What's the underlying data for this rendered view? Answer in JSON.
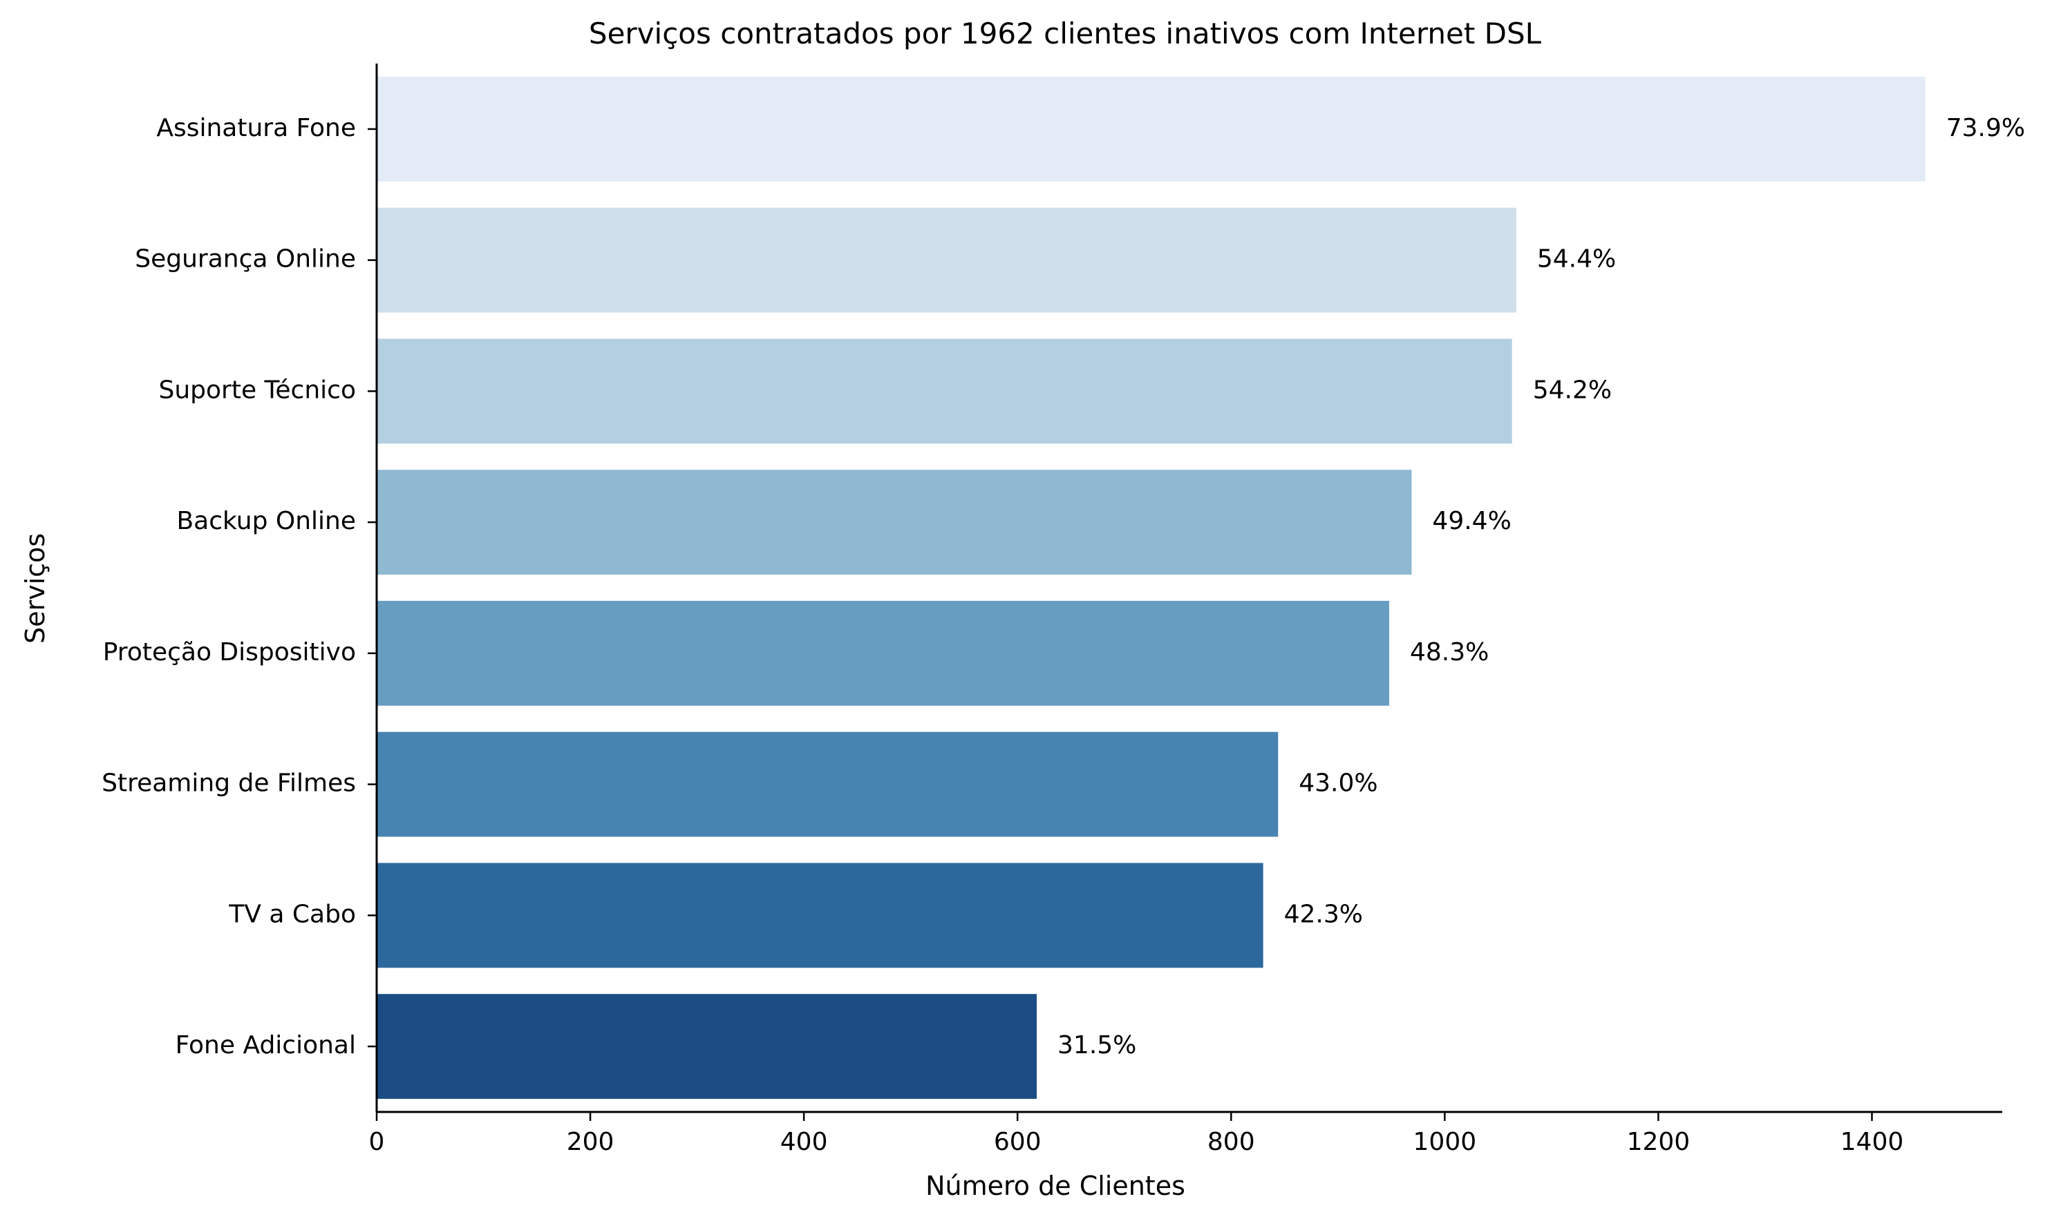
{
  "chart_data": {
    "type": "bar",
    "orientation": "horizontal",
    "title": "Serviços contratados por 1962 clientes inativos com Internet DSL",
    "xlabel": "Número de Clientes",
    "ylabel": "Serviços",
    "xlim": [
      0,
      1522
    ],
    "xticks": [
      0,
      200,
      400,
      600,
      800,
      1000,
      1200,
      1400
    ],
    "categories": [
      "Assinatura Fone",
      "Segurança Online",
      "Suporte Técnico",
      "Backup Online",
      "Proteção Dispositivo",
      "Streaming de Filmes",
      "TV a Cabo",
      "Fone Adicional"
    ],
    "values": [
      1450,
      1067,
      1063,
      969,
      948,
      844,
      830,
      618
    ],
    "labels": [
      "73.9%",
      "54.4%",
      "54.2%",
      "49.4%",
      "48.3%",
      "43.0%",
      "42.3%",
      "31.5%"
    ],
    "colors": [
      "#e3ecf6",
      "#cfdfec",
      "#b3cfe0",
      "#8fb8d1",
      "#679dc1",
      "#4884b1",
      "#2d689d",
      "#1b4d84"
    ],
    "grid": false,
    "legend": "none"
  }
}
